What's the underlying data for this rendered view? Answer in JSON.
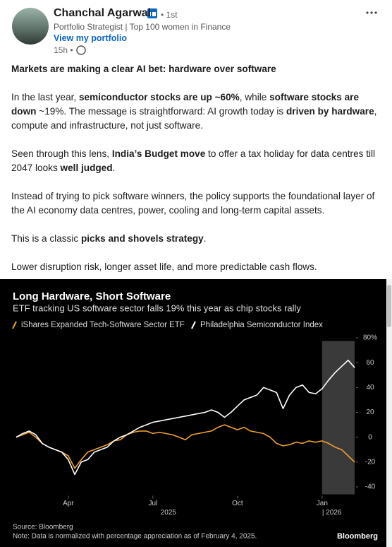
{
  "post": {
    "author": {
      "name": "Chanchal Agarwal",
      "degree": "• 1st",
      "headline": "Portfolio Strategist | Top 100 women in Finance",
      "link": "View my portfolio",
      "time": "15h •"
    },
    "paragraphs": [
      [
        {
          "text": "Markets are making a clear AI bet: hardware over software",
          "bold": true
        }
      ],
      [
        {
          "text": "In the last year, ",
          "bold": false
        },
        {
          "text": "semiconductor stocks are up ~60%",
          "bold": true
        },
        {
          "text": ", while ",
          "bold": false
        },
        {
          "text": "software stocks are down",
          "bold": true
        },
        {
          "text": " ~19%. The message is straightforward: AI growth today is ",
          "bold": false
        },
        {
          "text": "driven by hardware",
          "bold": true
        },
        {
          "text": ", compute and infrastructure, not just software.",
          "bold": false
        }
      ],
      [
        {
          "text": "Seen through this lens, ",
          "bold": false
        },
        {
          "text": "India’s Budget move",
          "bold": true
        },
        {
          "text": " to offer a tax holiday for data centres till 2047 looks ",
          "bold": false
        },
        {
          "text": "well judged",
          "bold": true
        },
        {
          "text": ".",
          "bold": false
        }
      ],
      [
        {
          "text": "Instead of trying to pick software winners, the policy supports the foundational layer of the AI economy data centres, power, cooling and long-term capital assets.",
          "bold": false
        }
      ],
      [
        {
          "text": "This is a classic ",
          "bold": false
        },
        {
          "text": "picks and shovels strategy",
          "bold": true
        },
        {
          "text": ".",
          "bold": false
        }
      ],
      [
        {
          "text": "Lower disruption risk, longer asset life, and more predictable cash flows.",
          "bold": false
        }
      ]
    ]
  },
  "chart_data": {
    "type": "line",
    "title": "Long Hardware, Short Software",
    "subtitle": "ETF tracking US software sector falls 19% this year as chip stocks rally",
    "categories": [
      null,
      null,
      null,
      null,
      null,
      null,
      null,
      null,
      "Apr",
      null,
      null,
      null,
      null,
      null,
      null,
      null,
      null,
      null,
      null,
      null,
      null,
      "Jul",
      null,
      null,
      null,
      null,
      null,
      null,
      null,
      null,
      null,
      null,
      null,
      null,
      "Oct",
      null,
      null,
      null,
      null,
      null,
      null,
      null,
      null,
      null,
      null,
      null,
      null,
      "Jan",
      null,
      null,
      null,
      null,
      null
    ],
    "year_labels": [
      {
        "at": "Jul",
        "label": "2025"
      },
      {
        "at": "Jan",
        "label": "| 2026"
      }
    ],
    "shaded_from": "Jan",
    "series": [
      {
        "name": "iShares Expanded Tech-Software Sector ETF",
        "color": "#f0a030",
        "values": [
          0,
          2,
          4,
          0,
          -5,
          -8,
          -10,
          -12,
          -15,
          -25,
          -18,
          -12,
          -10,
          -8,
          -6,
          -3,
          -2,
          2,
          4,
          5,
          5,
          3,
          4,
          3,
          2,
          0,
          -2,
          2,
          3,
          4,
          5,
          8,
          10,
          8,
          6,
          8,
          5,
          4,
          3,
          0,
          -5,
          -7,
          -6,
          -4,
          -5,
          -3,
          -4,
          -3,
          -5,
          -8,
          -10,
          -15,
          -20
        ]
      },
      {
        "name": "Philadelphia Semiconductor Index",
        "color": "#ffffff",
        "values": [
          0,
          3,
          5,
          2,
          -5,
          -8,
          -10,
          -12,
          -18,
          -30,
          -20,
          -18,
          -12,
          -10,
          -8,
          -3,
          0,
          2,
          5,
          8,
          10,
          12,
          13,
          14,
          15,
          16,
          17,
          18,
          19,
          20,
          22,
          20,
          16,
          20,
          25,
          30,
          32,
          34,
          40,
          38,
          36,
          23,
          34,
          40,
          42,
          36,
          35,
          39,
          46,
          52,
          57,
          62,
          56
        ]
      }
    ],
    "ylim": [
      -46,
      82
    ],
    "yticks": [
      {
        "value": 80,
        "label": "80%"
      },
      60,
      40,
      20,
      0,
      -20,
      -40
    ],
    "grid": false,
    "source": "Source: Bloomberg",
    "note": "Note: Data is normalized with percentage appreciation as of February 4, 2025.",
    "brand": "Bloomberg"
  }
}
